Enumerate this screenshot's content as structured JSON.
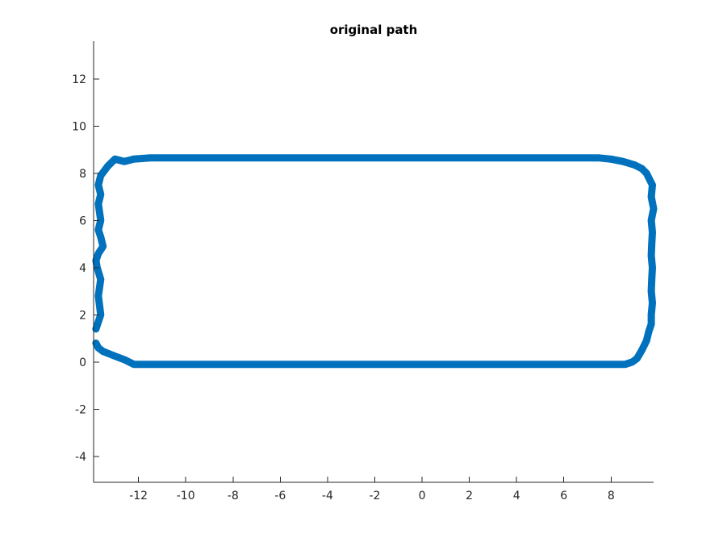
{
  "chart_data": {
    "type": "line",
    "title": "original path",
    "xlabel": "",
    "ylabel": "",
    "xlim": [
      -13.9,
      9.8
    ],
    "ylim": [
      -5.1,
      13.6
    ],
    "xticks": [
      -12,
      -10,
      -8,
      -6,
      -4,
      -2,
      0,
      2,
      4,
      6,
      8
    ],
    "xtick_labels": [
      "-12",
      "-10",
      "-8",
      "-6",
      "-4",
      "-2",
      "0",
      "2",
      "4",
      "6",
      "8"
    ],
    "yticks": [
      -4,
      -2,
      0,
      2,
      4,
      6,
      8,
      10,
      12
    ],
    "ytick_labels": [
      "-4",
      "-2",
      "0",
      "2",
      "4",
      "6",
      "8",
      "10",
      "12"
    ],
    "grid": false,
    "box": false,
    "series": [
      {
        "color": "#0072BD",
        "x": [
          -13.8,
          -13.7,
          -13.5,
          -13.0,
          -12.6,
          -12.2,
          -11.5,
          -10.5,
          -9.5,
          -8.5,
          -7.5,
          -6.5,
          -5.5,
          -4.5,
          -3.5,
          -2.5,
          -1.5,
          -0.5,
          0.5,
          1.5,
          2.5,
          3.5,
          4.5,
          5.5,
          6.5,
          7.5,
          8.2,
          8.6,
          8.9,
          9.1,
          9.3,
          9.5,
          9.6,
          9.7,
          9.7,
          9.75,
          9.7,
          9.72,
          9.75,
          9.7,
          9.72,
          9.75,
          9.7,
          9.8,
          9.7,
          9.75,
          9.6,
          9.5,
          9.3,
          9.0,
          8.5,
          8.0,
          7.5,
          6.5,
          5.5,
          4.5,
          3.5,
          2.5,
          1.5,
          0.5,
          -0.5,
          -1.5,
          -2.5,
          -3.5,
          -4.5,
          -5.5,
          -6.5,
          -7.5,
          -8.5,
          -9.5,
          -10.5,
          -11.5,
          -12.2,
          -12.6,
          -13.0,
          -13.3,
          -13.6,
          -13.7,
          -13.6,
          -13.7,
          -13.6,
          -13.7,
          -13.6,
          -13.5,
          -13.7,
          -13.8,
          -13.75,
          -13.6,
          -13.7,
          -13.6,
          -13.8
        ],
        "y": [
          0.8,
          0.6,
          0.45,
          0.25,
          0.1,
          -0.1,
          -0.1,
          -0.1,
          -0.1,
          -0.1,
          -0.1,
          -0.1,
          -0.1,
          -0.1,
          -0.1,
          -0.1,
          -0.1,
          -0.1,
          -0.1,
          -0.1,
          -0.1,
          -0.1,
          -0.1,
          -0.1,
          -0.1,
          -0.1,
          -0.1,
          -0.1,
          0.0,
          0.15,
          0.5,
          0.9,
          1.3,
          1.6,
          2.0,
          2.5,
          3.0,
          3.5,
          4.0,
          4.5,
          5.0,
          5.5,
          6.0,
          6.5,
          7.0,
          7.5,
          7.8,
          8.0,
          8.2,
          8.35,
          8.5,
          8.6,
          8.65,
          8.65,
          8.65,
          8.65,
          8.65,
          8.65,
          8.65,
          8.65,
          8.65,
          8.65,
          8.65,
          8.65,
          8.65,
          8.65,
          8.65,
          8.65,
          8.65,
          8.65,
          8.65,
          8.65,
          8.6,
          8.5,
          8.6,
          8.3,
          7.9,
          7.5,
          7.1,
          6.7,
          6.0,
          5.6,
          5.3,
          4.9,
          4.6,
          4.3,
          4.0,
          3.5,
          2.8,
          2.0,
          1.4
        ]
      }
    ]
  }
}
